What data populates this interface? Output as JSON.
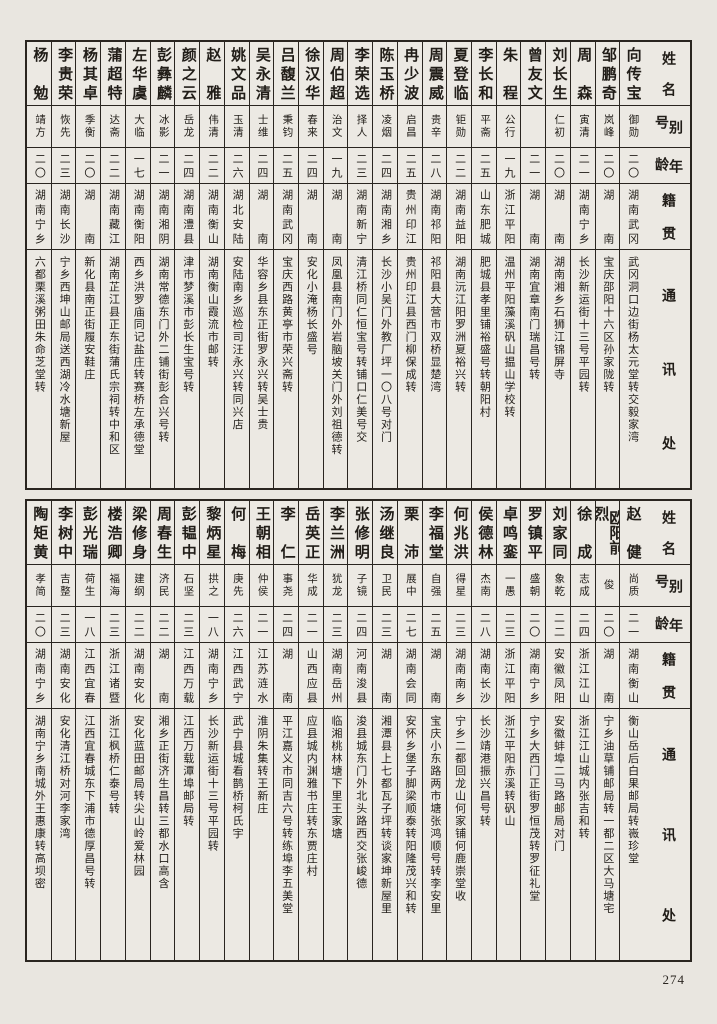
{
  "page": {
    "number": "274"
  },
  "headers": {
    "name": "姓名",
    "alias": "别号",
    "age": "年龄",
    "native": "籍贯",
    "address": "通讯处"
  },
  "top_table": {
    "people": [
      {
        "name": "向传宝",
        "alias": "御勋",
        "age": "二〇",
        "native": "湖南武冈",
        "address": "武冈洞口边街杨太元堂转交毅家湾"
      },
      {
        "name": "邹鹏奇",
        "alias": "岚峰",
        "age": "二〇",
        "native": "湖南",
        "address": "宝庆邵阳十六区孙家陇转"
      },
      {
        "name": "周森",
        "alias": "寅清",
        "age": "二一",
        "native": "湖南宁乡",
        "address": "长沙新运街十三号平园转"
      },
      {
        "name": "刘长生",
        "alias": "仁初",
        "age": "二〇",
        "native": "湖南",
        "address": "湖南湘乡石狮江锦屏寺"
      },
      {
        "name": "曾友文",
        "alias": "",
        "age": "二一",
        "native": "湖南",
        "address": "湖南宜章南门瑞昌号转"
      },
      {
        "name": "朱程",
        "alias": "公行",
        "age": "一九",
        "native": "浙江平阳",
        "address": "温州平阳藻溪矾山揾山学校转"
      },
      {
        "name": "李长和",
        "alias": "平斋",
        "age": "二五",
        "native": "山东肥城",
        "address": "肥城县孝里铺裕盛号转朝阳村"
      },
      {
        "name": "夏登临",
        "alias": "钜勋",
        "age": "二二",
        "native": "湖南益阳",
        "address": "湖南沅江阳罗洲夏裕兴转"
      },
      {
        "name": "周震威",
        "alias": "贵辛",
        "age": "二八",
        "native": "湖南祁阳",
        "address": "祁阳县大营市双桥显楚湾"
      },
      {
        "name": "冉少波",
        "alias": "启昌",
        "age": "二五",
        "native": "贵州印江",
        "address": "贵州印江县西门柳保成转"
      },
      {
        "name": "陈玉桥",
        "alias": "凌烟",
        "age": "二四",
        "native": "湖南湘乡",
        "address": "长沙小吴门外教厂坪一〇八号对门"
      },
      {
        "name": "李荣选",
        "alias": "择人",
        "age": "二三",
        "native": "湖南新宁",
        "address": "清江桥同仁恒宝号转铺口仁美号交"
      },
      {
        "name": "周伯超",
        "alias": "治文",
        "age": "一九",
        "native": "湖南",
        "address": "凤凰县南门外岩脑坡关门外刘祖德转"
      },
      {
        "name": "徐汉华",
        "alias": "春来",
        "age": "二四",
        "native": "湖南",
        "address": "安化小淹杨长盛号"
      },
      {
        "name": "吕馥兰",
        "alias": "秉钧",
        "age": "二五",
        "native": "湖南武冈",
        "address": "宝庆西路黄亭市荣兴斋转"
      },
      {
        "name": "吴永清",
        "alias": "士维",
        "age": "二四",
        "native": "湖南",
        "address": "华容乡县东正街罗永兴转吴士贵"
      },
      {
        "name": "姚文品",
        "alias": "玉清",
        "age": "二六",
        "native": "湖北安陆",
        "address": "安陆南乡巡检司汪永兴转同兴店"
      },
      {
        "name": "赵雅",
        "alias": "伟清",
        "age": "二二",
        "native": "湖南衡山",
        "address": "湖南衡山霞流市邮转"
      },
      {
        "name": "颜之云",
        "alias": "岳龙",
        "age": "二四",
        "native": "湖南澧县",
        "address": "津市梦溪市彭长生宝号转"
      },
      {
        "name": "彭彝麟",
        "alias": "冰影",
        "age": "二一",
        "native": "湖南湘阴",
        "address": "湖南常德东门外二铺街彭合兴号转"
      },
      {
        "name": "左华虞",
        "alias": "大临",
        "age": "一七",
        "native": "湖南衡阳",
        "address": "西乡洪罗庙同记盐庄转赛桥左承德堂"
      },
      {
        "name": "蒲超特",
        "alias": "达斋",
        "age": "二二",
        "native": "湖南藏江",
        "address": "湖南芷江县正东街蒲氏宗祠转中和区"
      },
      {
        "name": "杨其卓",
        "alias": "季衡",
        "age": "二〇",
        "native": "湖南",
        "address": "新化县南正街履安鞋庄"
      },
      {
        "name": "李贵荣",
        "alias": "恢先",
        "age": "二三",
        "native": "湖南长沙",
        "address": "宁乡西坤山邮局送西湖冷水塘新屋"
      },
      {
        "name": "杨勉",
        "alias": "靖方",
        "age": "二〇",
        "native": "湖南宁乡",
        "address": "六都栗溪粥田朱命芝堂转"
      }
    ]
  },
  "bottom_table": {
    "people": [
      {
        "name": "赵健",
        "alias": "尚质",
        "age": "二一",
        "native": "湖南衡山",
        "address": "衡山岳后白果邮局转嶶珍堂"
      },
      {
        "name": "欧阳前烈",
        "alias": "俊",
        "age": "二〇",
        "native": "湖南",
        "address": "宁乡油草铺邮局转一都二区大马塘宅"
      },
      {
        "name": "徐成",
        "alias": "志成",
        "age": "二四",
        "native": "浙江江山",
        "address": "浙江江山城内张吉和转"
      },
      {
        "name": "刘家同",
        "alias": "象乾",
        "age": "二二",
        "native": "安徽凤阳",
        "address": "安徽蚌埠二马路邮局对门"
      },
      {
        "name": "罗镇平",
        "alias": "盛朝",
        "age": "二〇",
        "native": "湖南宁乡",
        "address": "宁乡大西门正街罗恒茂转罗征礼堂"
      },
      {
        "name": "卓鸣銮",
        "alias": "一愚",
        "age": "二三",
        "native": "浙江平阳",
        "address": "浙江平阳赤溪转矾山"
      },
      {
        "name": "侯德林",
        "alias": "杰南",
        "age": "二八",
        "native": "湖南长沙",
        "address": "长沙靖港振兴昌号转"
      },
      {
        "name": "何兆洪",
        "alias": "得星",
        "age": "二三",
        "native": "湖南南乡",
        "address": "宁乡二都回龙山何家铺何鹿崇堂收"
      },
      {
        "name": "李福堂",
        "alias": "自强",
        "age": "二五",
        "native": "湖南",
        "address": "宝庆小东路两市塘张鸿顺号转李安里"
      },
      {
        "name": "栗沛",
        "alias": "展中",
        "age": "二七",
        "native": "湖南会同",
        "address": "安怀乡堡子脚梁顺泰转阳隆茂兴和转"
      },
      {
        "name": "汤继良",
        "alias": "卫民",
        "age": "二三",
        "native": "湖南",
        "address": "湘潭县上七都瓦子坪转谈家坤新屋里"
      },
      {
        "name": "张修明",
        "alias": "子镜",
        "age": "二四",
        "native": "河南浚县",
        "address": "浚县城东门外北头路西交张峻德"
      },
      {
        "name": "李兰洲",
        "alias": "犹龙",
        "age": "二三",
        "native": "湖南岳州",
        "address": "临湘桃林塘下里王家塘"
      },
      {
        "name": "岳英正",
        "alias": "华成",
        "age": "二一",
        "native": "山西应县",
        "address": "应县城内渊雅书庄转东贾庄村"
      },
      {
        "name": "李仁",
        "alias": "事尧",
        "age": "二四",
        "native": "湖南",
        "address": "平江嘉义市同吉六号转练埠李五美堂"
      },
      {
        "name": "王朝相",
        "alias": "仲侯",
        "age": "二一",
        "native": "江苏涟水",
        "address": "淮阴朱集转王新庄"
      },
      {
        "name": "何梅",
        "alias": "庚先",
        "age": "二六",
        "native": "江西武宁",
        "address": "武宁县城看鹊桥柯氏宇"
      },
      {
        "name": "黎炳星",
        "alias": "拱之",
        "age": "一八",
        "native": "湖南宁乡",
        "address": "长沙新运街十三号平园转"
      },
      {
        "name": "彭韫中",
        "alias": "石坚",
        "age": "二三",
        "native": "江西万载",
        "address": "江西万载潭埠邮局转"
      },
      {
        "name": "周春生",
        "alias": "济民",
        "age": "二二",
        "native": "湖南",
        "address": "湘乡正街济生昌转三都水口高含"
      },
      {
        "name": "梁修身",
        "alias": "建纲",
        "age": "二二",
        "native": "湖南安化",
        "address": "安化蓝田邮局转尖山岭爱林园"
      },
      {
        "name": "楼浩卿",
        "alias": "福海",
        "age": "二三",
        "native": "浙江诸暨",
        "address": "浙江枫桥仁泰号转"
      },
      {
        "name": "彭光瑞",
        "alias": "荷生",
        "age": "一八",
        "native": "江西宜春",
        "address": "江西宜春城东下浦市德厚昌号转"
      },
      {
        "name": "李树中",
        "alias": "吉整",
        "age": "二三",
        "native": "湖南安化",
        "address": "安化清江桥对河李家湾"
      },
      {
        "name": "陶矩黄",
        "alias": "孝简",
        "age": "二〇",
        "native": "湖南宁乡",
        "address": "湖南宁乡南城外王惠康转高坝密"
      }
    ]
  }
}
